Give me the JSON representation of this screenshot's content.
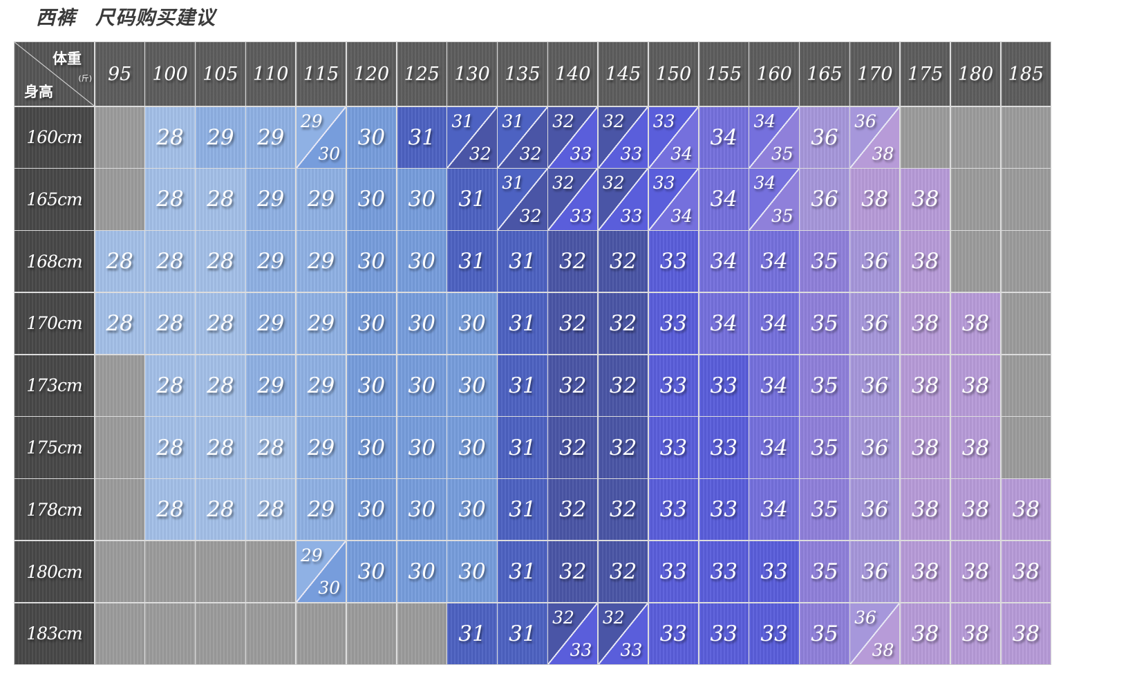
{
  "title": {
    "product": "西裤",
    "subtitle": "尺码购买建议"
  },
  "corner": {
    "weight_label": "体重",
    "weight_unit": "(斤)",
    "height_label": "身高"
  },
  "weights": [
    "95",
    "100",
    "105",
    "110",
    "115",
    "120",
    "125",
    "130",
    "135",
    "140",
    "145",
    "150",
    "155",
    "160",
    "165",
    "170",
    "175",
    "180",
    "185"
  ],
  "rows": [
    {
      "height": "160cm",
      "sizes": [
        "",
        "28",
        "29",
        "29",
        "29/30",
        "30",
        "31",
        "31/32",
        "31/32",
        "32/33",
        "32/33",
        "33/34",
        "34",
        "34/35",
        "36",
        "36/38",
        "",
        "",
        ""
      ]
    },
    {
      "height": "165cm",
      "sizes": [
        "",
        "28",
        "28",
        "29",
        "29",
        "30",
        "30",
        "31",
        "31/32",
        "32/33",
        "32/33",
        "33/34",
        "34",
        "34/35",
        "36",
        "38",
        "38",
        "",
        ""
      ]
    },
    {
      "height": "168cm",
      "sizes": [
        "28",
        "28",
        "28",
        "29",
        "29",
        "30",
        "30",
        "31",
        "31",
        "32",
        "32",
        "33",
        "34",
        "34",
        "35",
        "36",
        "38",
        "",
        ""
      ]
    },
    {
      "height": "170cm",
      "sizes": [
        "28",
        "28",
        "28",
        "29",
        "29",
        "30",
        "30",
        "30",
        "31",
        "32",
        "32",
        "33",
        "34",
        "34",
        "35",
        "36",
        "38",
        "38",
        ""
      ]
    },
    {
      "height": "173cm",
      "sizes": [
        "",
        "28",
        "28",
        "29",
        "29",
        "30",
        "30",
        "30",
        "31",
        "32",
        "32",
        "33",
        "33",
        "34",
        "35",
        "36",
        "38",
        "38",
        ""
      ]
    },
    {
      "height": "175cm",
      "sizes": [
        "",
        "28",
        "28",
        "28",
        "29",
        "30",
        "30",
        "30",
        "31",
        "32",
        "32",
        "33",
        "33",
        "34",
        "35",
        "36",
        "38",
        "38",
        ""
      ]
    },
    {
      "height": "178cm",
      "sizes": [
        "",
        "28",
        "28",
        "28",
        "29",
        "30",
        "30",
        "30",
        "31",
        "32",
        "32",
        "33",
        "33",
        "34",
        "35",
        "36",
        "38",
        "38",
        "38"
      ]
    },
    {
      "height": "180cm",
      "sizes": [
        "",
        "",
        "",
        "",
        "29/30",
        "30",
        "30",
        "30",
        "31",
        "32",
        "32",
        "33",
        "33",
        "33",
        "35",
        "36",
        "38",
        "38",
        "38"
      ]
    },
    {
      "height": "183cm",
      "sizes": [
        "",
        "",
        "",
        "",
        "",
        "",
        "",
        "31",
        "31",
        "32/33",
        "32/33",
        "33",
        "33",
        "33",
        "35",
        "36/38",
        "38",
        "38",
        "38"
      ]
    }
  ],
  "size_colors": {
    "28": "#a3c0e8",
    "29": "#8fb1e4",
    "30": "#779ddc",
    "31": "#4d62c2",
    "32": "#4a55a6",
    "33": "#5a5edb",
    "34": "#7570dd",
    "35": "#8f80da",
    "36": "#a697db",
    "38": "#b79bd8"
  },
  "empty_color": "#9c9c9c"
}
